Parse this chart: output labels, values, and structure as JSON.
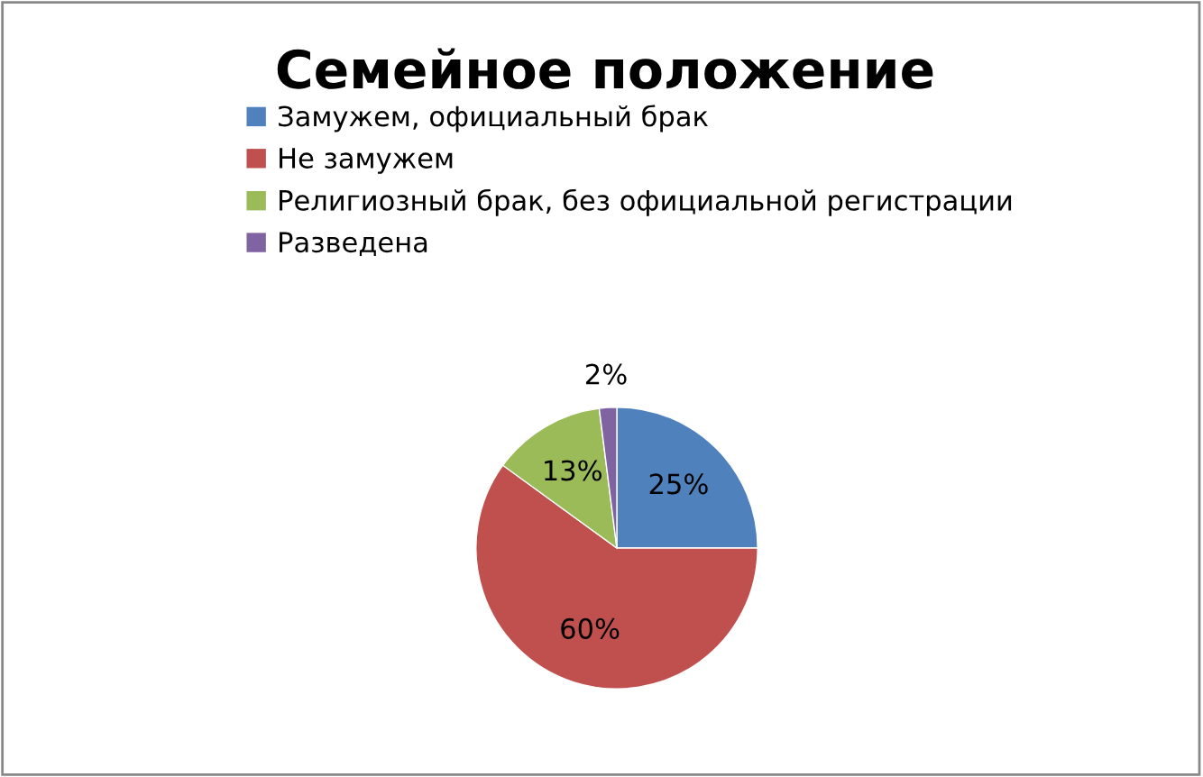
{
  "chart_data": {
    "type": "pie",
    "title": "Семейное положение",
    "categories": [
      "Замужем, официальный брак",
      "Не замужем",
      "Религиозный брак, без официальной регистрации",
      "Разведена"
    ],
    "values": [
      25,
      60,
      13,
      2
    ],
    "colors": [
      "#4f81bd",
      "#c0504d",
      "#9bbb59",
      "#8064a2"
    ],
    "value_labels": [
      "25%",
      "60%",
      "13%",
      "2%"
    ],
    "legend": "top"
  }
}
